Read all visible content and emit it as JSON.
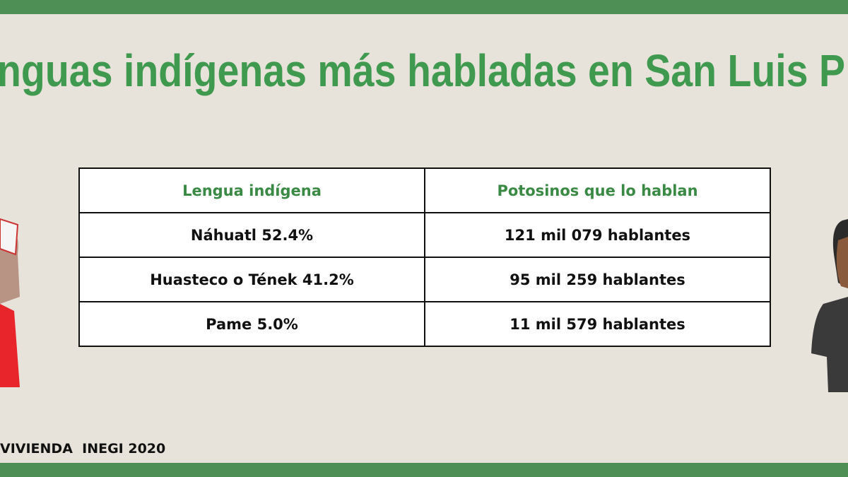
{
  "header": {
    "title": "nguas indígenas más habladas en San Luis P"
  },
  "table": {
    "columns": [
      "Lengua indígena",
      "Potosinos que lo hablan"
    ],
    "rows": [
      [
        "Náhuatl  52.4%",
        "121 mil 079 hablantes"
      ],
      [
        "Huasteco o Tének  41.2%",
        "95 mil 259 hablantes"
      ],
      [
        "Pame 5.0%",
        "11 mil 579 hablantes"
      ]
    ]
  },
  "footer": {
    "source": "VIVIENDA  INEGI 2020"
  }
}
